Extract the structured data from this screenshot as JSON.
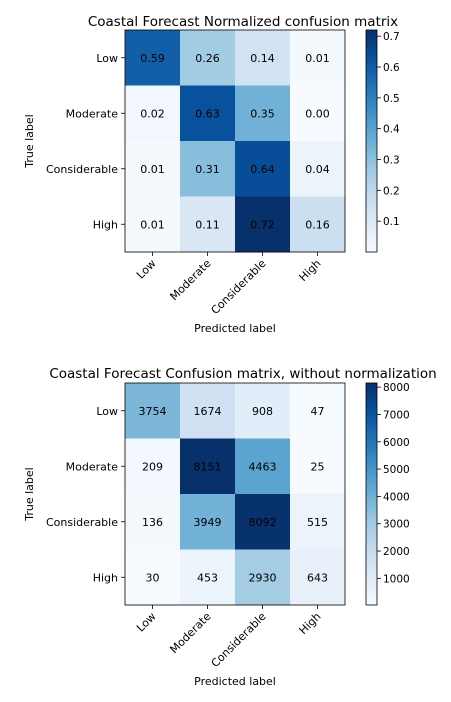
{
  "chart_data": [
    {
      "type": "heatmap",
      "title": "Coastal Forecast Normalized confusion matrix",
      "xlabel": "Predicted label",
      "ylabel": "True label",
      "categories": [
        "Low",
        "Moderate",
        "Considerable",
        "High"
      ],
      "values": [
        [
          0.59,
          0.26,
          0.14,
          0.01
        ],
        [
          0.02,
          0.63,
          0.35,
          0.0
        ],
        [
          0.01,
          0.31,
          0.64,
          0.04
        ],
        [
          0.01,
          0.11,
          0.72,
          0.16
        ]
      ],
      "value_labels": [
        [
          "0.59",
          "0.26",
          "0.14",
          "0.01"
        ],
        [
          "0.02",
          "0.63",
          "0.35",
          "0.00"
        ],
        [
          "0.01",
          "0.31",
          "0.64",
          "0.04"
        ],
        [
          "0.01",
          "0.11",
          "0.72",
          "0.16"
        ]
      ],
      "colorbar": {
        "min": 0.0,
        "max": 0.72,
        "ticks": [
          0.1,
          0.2,
          0.3,
          0.4,
          0.5,
          0.6,
          0.7
        ],
        "tick_labels": [
          "0.1",
          "0.2",
          "0.3",
          "0.4",
          "0.5",
          "0.6",
          "0.7"
        ]
      },
      "colormap": "Blues",
      "grid": false
    },
    {
      "type": "heatmap",
      "title": "Coastal Forecast Confusion matrix, without normalization",
      "xlabel": "Predicted label",
      "ylabel": "True label",
      "categories": [
        "Low",
        "Moderate",
        "Considerable",
        "High"
      ],
      "values": [
        [
          3754,
          1674,
          908,
          47
        ],
        [
          209,
          8151,
          4463,
          25
        ],
        [
          136,
          3949,
          8092,
          515
        ],
        [
          30,
          453,
          2930,
          643
        ]
      ],
      "value_labels": [
        [
          "3754",
          "1674",
          "908",
          "47"
        ],
        [
          "209",
          "8151",
          "4463",
          "25"
        ],
        [
          "136",
          "3949",
          "8092",
          "515"
        ],
        [
          "30",
          "453",
          "2930",
          "643"
        ]
      ],
      "colorbar": {
        "min": 25,
        "max": 8151,
        "ticks": [
          1000,
          2000,
          3000,
          4000,
          5000,
          6000,
          7000,
          8000
        ],
        "tick_labels": [
          "1000",
          "2000",
          "3000",
          "4000",
          "5000",
          "6000",
          "7000",
          "8000"
        ]
      },
      "colormap": "Blues",
      "grid": false
    }
  ]
}
